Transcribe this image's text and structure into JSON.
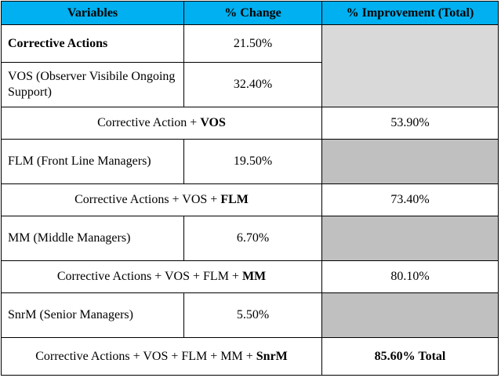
{
  "header": {
    "col1": "Variables",
    "col2": "% Change",
    "col3": "% Improvement (Total)"
  },
  "rows": {
    "corrective_actions": {
      "label": "Corrective Actions",
      "change": "21.50%"
    },
    "vos": {
      "label": "VOS (Observer Visibile Ongoing Support)",
      "change": "32.40%"
    },
    "sum1": {
      "prefix": "Corrective Action + ",
      "bold": "VOS",
      "total": "53.90%"
    },
    "flm": {
      "label": "FLM (Front Line Managers)",
      "change": "19.50%"
    },
    "sum2": {
      "prefix": "Corrective Actions + VOS + ",
      "bold": "FLM",
      "total": "73.40%"
    },
    "mm": {
      "label": "MM (Middle Managers)",
      "change": "6.70%"
    },
    "sum3": {
      "prefix": "Corrective Actions + VOS + FLM + ",
      "bold": "MM",
      "total": "80.10%"
    },
    "snrm": {
      "label": "SnrM (Senior Managers)",
      "change": "5.50%"
    },
    "sum4": {
      "prefix": "Corrective Actions + VOS + FLM + MM + ",
      "bold": "SnrM",
      "total": "85.60% Total"
    }
  },
  "colors": {
    "header_bg": "#00b0f0",
    "empty_light": "#d9d9d9",
    "empty_dark": "#c0c0c0"
  }
}
